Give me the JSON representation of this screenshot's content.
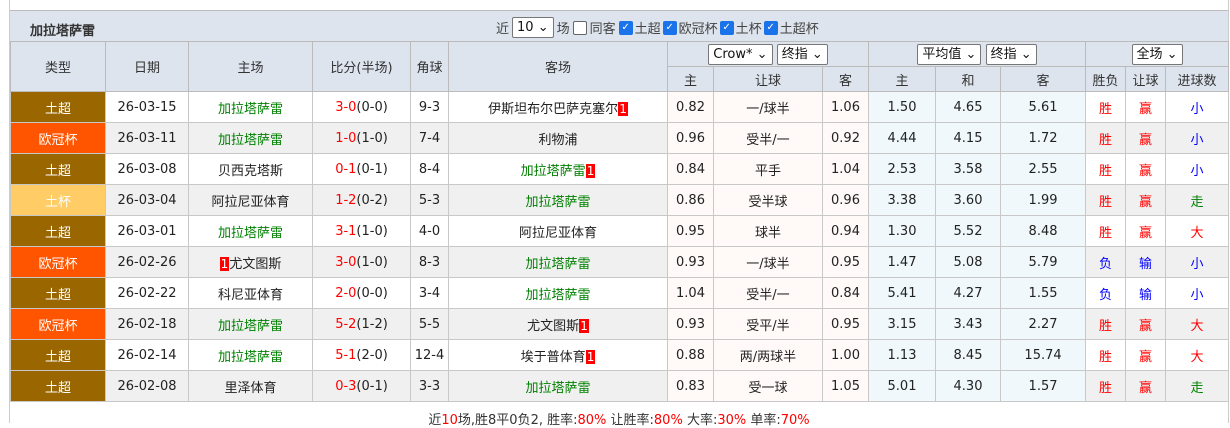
{
  "team": "加拉塔萨雷",
  "filters": {
    "near_label": "近",
    "count": "10",
    "match_label": "场",
    "same_home_label": "同客",
    "same_home_checked": false,
    "leagues": [
      {
        "label": "土超",
        "checked": true
      },
      {
        "label": "欧冠杯",
        "checked": true
      },
      {
        "label": "土杯",
        "checked": true
      },
      {
        "label": "土超杯",
        "checked": true
      }
    ]
  },
  "headers": {
    "type": "类型",
    "date": "日期",
    "home": "主场",
    "score": "比分(半场)",
    "corner": "角球",
    "away": "客场",
    "company_select": "Crow*",
    "handicap_select": "终指",
    "euro_select": "平均值",
    "euro_type_select": "终指",
    "scope_select": "全场",
    "h_home": "主",
    "h_line": "让球",
    "h_away": "客",
    "e_home": "主",
    "e_draw": "和",
    "e_away": "客",
    "res_wl": "胜负",
    "res_hc": "让球",
    "res_goals": "进球数"
  },
  "colors": {
    "土超": "#996600",
    "欧冠杯": "#ff5500",
    "土杯": "#ffcc66",
    "team_green": "#008000",
    "win_red": "#ff0000",
    "lose_blue": "#0000ff"
  },
  "rows": [
    {
      "type": "土超",
      "date": "26-03-15",
      "home": "加拉塔萨雷",
      "home_card": "",
      "score": "3-0",
      "half": "(0-0)",
      "corner": "9-3",
      "away": "伊斯坦布尔巴萨克塞尔",
      "away_card": "1",
      "hh": "0.82",
      "hl": "一/球半",
      "ha": "1.06",
      "eh": "1.50",
      "ed": "4.65",
      "ea": "5.61",
      "wl": "胜",
      "hc": "赢",
      "goals": "小"
    },
    {
      "type": "欧冠杯",
      "date": "26-03-11",
      "home": "加拉塔萨雷",
      "home_card": "",
      "score": "1-0",
      "half": "(1-0)",
      "corner": "7-4",
      "away": "利物浦",
      "away_card": "",
      "hh": "0.96",
      "hl": "受半/一",
      "ha": "0.92",
      "eh": "4.44",
      "ed": "4.15",
      "ea": "1.72",
      "wl": "胜",
      "hc": "赢",
      "goals": "小"
    },
    {
      "type": "土超",
      "date": "26-03-08",
      "home": "贝西克塔斯",
      "home_card": "",
      "score": "0-1",
      "half": "(0-1)",
      "corner": "8-4",
      "away": "加拉塔萨雷",
      "away_card": "1",
      "hh": "0.84",
      "hl": "平手",
      "ha": "1.04",
      "eh": "2.53",
      "ed": "3.58",
      "ea": "2.55",
      "wl": "胜",
      "hc": "赢",
      "goals": "小"
    },
    {
      "type": "土杯",
      "date": "26-03-04",
      "home": "阿拉尼亚体育",
      "home_card": "",
      "score": "1-2",
      "half": "(0-2)",
      "corner": "5-3",
      "away": "加拉塔萨雷",
      "away_card": "",
      "hh": "0.86",
      "hl": "受半球",
      "ha": "0.96",
      "eh": "3.38",
      "ed": "3.60",
      "ea": "1.99",
      "wl": "胜",
      "hc": "赢",
      "goals": "走"
    },
    {
      "type": "土超",
      "date": "26-03-01",
      "home": "加拉塔萨雷",
      "home_card": "",
      "score": "3-1",
      "half": "(1-0)",
      "corner": "4-0",
      "away": "阿拉尼亚体育",
      "away_card": "",
      "hh": "0.95",
      "hl": "球半",
      "ha": "0.94",
      "eh": "1.30",
      "ed": "5.52",
      "ea": "8.48",
      "wl": "胜",
      "hc": "赢",
      "goals": "大"
    },
    {
      "type": "欧冠杯",
      "date": "26-02-26",
      "home": "尤文图斯",
      "home_card": "1",
      "score": "3-0",
      "half": "(1-0)",
      "corner": "8-3",
      "away": "加拉塔萨雷",
      "away_card": "",
      "hh": "0.93",
      "hl": "一/球半",
      "ha": "0.95",
      "eh": "1.47",
      "ed": "5.08",
      "ea": "5.79",
      "wl": "负",
      "hc": "输",
      "goals": "小"
    },
    {
      "type": "土超",
      "date": "26-02-22",
      "home": "科尼亚体育",
      "home_card": "",
      "score": "2-0",
      "half": "(0-0)",
      "corner": "3-4",
      "away": "加拉塔萨雷",
      "away_card": "",
      "hh": "1.04",
      "hl": "受半/一",
      "ha": "0.84",
      "eh": "5.41",
      "ed": "4.27",
      "ea": "1.55",
      "wl": "负",
      "hc": "输",
      "goals": "小"
    },
    {
      "type": "欧冠杯",
      "date": "26-02-18",
      "home": "加拉塔萨雷",
      "home_card": "",
      "score": "5-2",
      "half": "(1-2)",
      "corner": "5-5",
      "away": "尤文图斯",
      "away_card": "1",
      "hh": "0.93",
      "hl": "受平/半",
      "ha": "0.95",
      "eh": "3.15",
      "ed": "3.43",
      "ea": "2.27",
      "wl": "胜",
      "hc": "赢",
      "goals": "大"
    },
    {
      "type": "土超",
      "date": "26-02-14",
      "home": "加拉塔萨雷",
      "home_card": "",
      "score": "5-1",
      "half": "(2-0)",
      "corner": "12-4",
      "away": "埃于普体育",
      "away_card": "1",
      "hh": "0.88",
      "hl": "两/两球半",
      "ha": "1.00",
      "eh": "1.13",
      "ed": "8.45",
      "ea": "15.74",
      "wl": "胜",
      "hc": "赢",
      "goals": "大"
    },
    {
      "type": "土超",
      "date": "26-02-08",
      "home": "里泽体育",
      "home_card": "",
      "score": "0-3",
      "half": "(0-1)",
      "corner": "3-3",
      "away": "加拉塔萨雷",
      "away_card": "",
      "hh": "0.83",
      "hl": "受一球",
      "ha": "1.05",
      "eh": "5.01",
      "ed": "4.30",
      "ea": "1.57",
      "wl": "胜",
      "hc": "赢",
      "goals": "走"
    }
  ],
  "summary": {
    "p1": "近",
    "n": "10",
    "p2": "场,胜8平0负2, 胜率:",
    "win": "80%",
    "p3": " 让胜率:",
    "hcwin": "80%",
    "p4": " 大率:",
    "big": "30%",
    "p5": " 单率:",
    "odd": "70%"
  }
}
